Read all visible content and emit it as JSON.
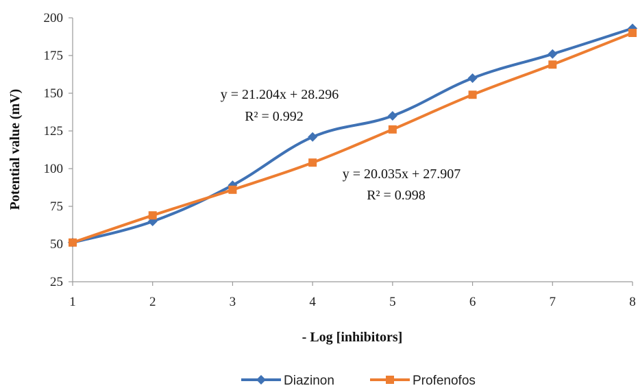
{
  "chart_data": {
    "type": "line",
    "xlabel": "- Log [inhibitors]",
    "ylabel": "Potential value (mV)",
    "xlim": [
      1,
      8
    ],
    "ylim": [
      25,
      200
    ],
    "x_ticks": [
      "1",
      "2",
      "3",
      "4",
      "5",
      "6",
      "7",
      "8"
    ],
    "y_ticks": [
      "25",
      "50",
      "75",
      "100",
      "125",
      "150",
      "175",
      "200"
    ],
    "grid": false,
    "legend_position": "bottom",
    "x": [
      1,
      2,
      3,
      4,
      5,
      6,
      7,
      8
    ],
    "series": [
      {
        "name": "Diazinon",
        "color": "#3F72B5",
        "marker": "diamond",
        "values": [
          51,
          65,
          89,
          121,
          135,
          160,
          176,
          193
        ]
      },
      {
        "name": "Profenofos",
        "color": "#ED7D31",
        "marker": "square",
        "values": [
          51,
          69,
          86,
          104,
          126,
          149,
          169,
          190
        ]
      }
    ],
    "annotations": [
      {
        "series": "Diazinon",
        "equation": "y = 21.204x + 28.296",
        "r2": "R² = 0.992"
      },
      {
        "series": "Profenofos",
        "equation": "y = 20.035x + 27.907",
        "r2": "R² = 0.998"
      }
    ]
  }
}
